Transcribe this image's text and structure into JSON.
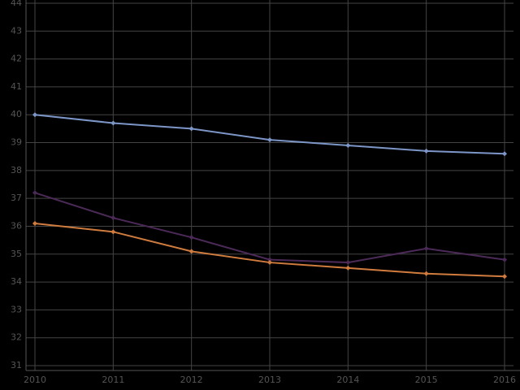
{
  "chart_data": {
    "type": "line",
    "categories": [
      "2010",
      "2011",
      "2012",
      "2013",
      "2014",
      "2015",
      "2016"
    ],
    "series": [
      {
        "color": "#7d96c8",
        "values": [
          40,
          39.7,
          39.5,
          39.1,
          38.9,
          38.7,
          38.6
        ]
      },
      {
        "color": "#4b2a57",
        "values": [
          37.2,
          36.3,
          35.6,
          34.8,
          34.7,
          35.2,
          34.8
        ]
      },
      {
        "color": "#d07c3e",
        "values": [
          36.1,
          35.8,
          35.1,
          34.7,
          34.5,
          34.3,
          34.2
        ]
      }
    ],
    "ylim": [
      31,
      44
    ],
    "yticks": [
      31,
      32,
      33,
      34,
      35,
      36,
      37,
      38,
      39,
      40,
      41,
      42,
      43,
      44
    ],
    "grid": true
  }
}
